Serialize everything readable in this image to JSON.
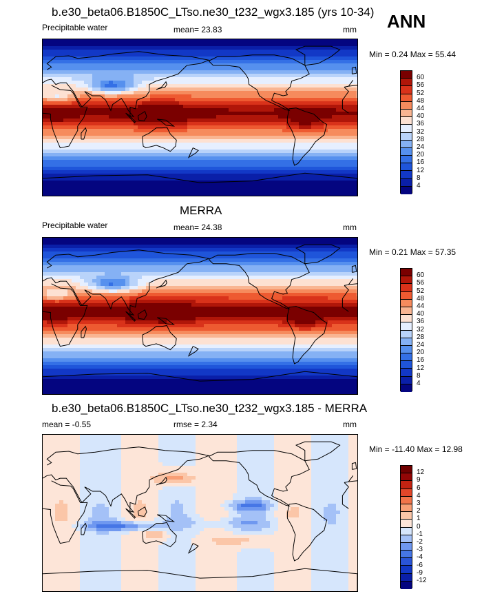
{
  "annual_label": "ANN",
  "panels": [
    {
      "title": "b.e30_beta06.B1850C_LTso.ne30_t232_wgx3.185 (yrs 10-34)",
      "left_label": "Precipitable water",
      "stat_label": "mean=  23.83",
      "units": "mm",
      "minmax": "Min =   0.24 Max =  55.44"
    },
    {
      "title": "MERRA",
      "left_label": "Precipitable water",
      "stat_label": "mean=  24.38",
      "units": "mm",
      "minmax": "Min =   0.21 Max =  57.35"
    },
    {
      "title": "b.e30_beta06.B1850C_LTso.ne30_t232_wgx3.185 - MERRA",
      "left_label": "mean =  -0.55",
      "stat_label": "rmse =   2.34",
      "units": "mm",
      "minmax": "Min = -11.40 Max =  12.98"
    }
  ],
  "chart_data": [
    {
      "type": "heatmap",
      "title": "b.e30_beta06.B1850C_LTso.ne30_t232_wgx3.185 (yrs 10-34)",
      "variable": "Precipitable water",
      "units": "mm",
      "mean": 23.83,
      "min": 0.24,
      "max": 55.44,
      "colorbar_levels": [
        4,
        8,
        12,
        16,
        20,
        24,
        28,
        32,
        36,
        40,
        44,
        48,
        52,
        56,
        60
      ],
      "colors": [
        "#040580",
        "#0a1fa8",
        "#1238c6",
        "#1f55da",
        "#3470e6",
        "#5690ee",
        "#85b1f4",
        "#b9d3fa",
        "#e6efff",
        "#fde1d2",
        "#f9b592",
        "#f68b5d",
        "#ee5a31",
        "#d9321a",
        "#b01609",
        "#7a0000"
      ]
    },
    {
      "type": "heatmap",
      "title": "MERRA",
      "variable": "Precipitable water",
      "units": "mm",
      "mean": 24.38,
      "min": 0.21,
      "max": 57.35,
      "colorbar_levels": [
        4,
        8,
        12,
        16,
        20,
        24,
        28,
        32,
        36,
        40,
        44,
        48,
        52,
        56,
        60
      ],
      "colors": [
        "#040580",
        "#0a1fa8",
        "#1238c6",
        "#1f55da",
        "#3470e6",
        "#5690ee",
        "#85b1f4",
        "#b9d3fa",
        "#e6efff",
        "#fde1d2",
        "#f9b592",
        "#f68b5d",
        "#ee5a31",
        "#d9321a",
        "#b01609",
        "#7a0000"
      ]
    },
    {
      "type": "heatmap",
      "title": "b.e30_beta06.B1850C_LTso.ne30_t232_wgx3.185 - MERRA",
      "units": "mm",
      "mean": -0.55,
      "rmse": 2.34,
      "min": -11.4,
      "max": 12.98,
      "colorbar_levels": [
        -12,
        -9,
        -6,
        -4,
        -3,
        -2,
        -1,
        0,
        1,
        2,
        3,
        4,
        6,
        9,
        12
      ],
      "colors": [
        "#040580",
        "#0a1fa8",
        "#1238c6",
        "#2a55d8",
        "#4676e6",
        "#6f98f0",
        "#a4c1f7",
        "#d6e6fc",
        "#fde5d8",
        "#fbc6a8",
        "#f89f76",
        "#f2744a",
        "#e2472a",
        "#c42312",
        "#930606",
        "#700000"
      ]
    }
  ]
}
